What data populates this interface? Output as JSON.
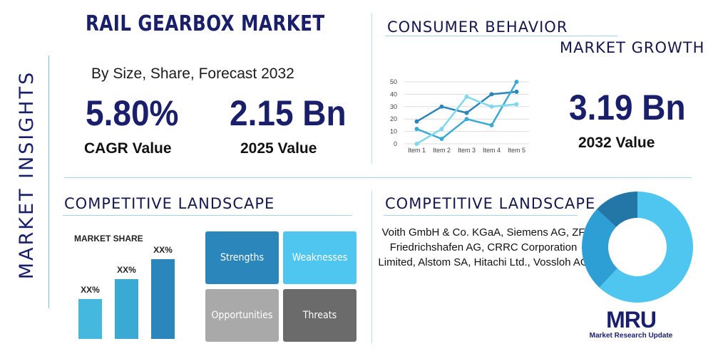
{
  "side_label": "MARKET INSIGHTS",
  "title": "RAIL GEARBOX MARKET",
  "subtitle": "By Size, Share, Forecast 2032",
  "cagr": {
    "value": "5.80%",
    "label": "CAGR Value"
  },
  "value_2025": {
    "value": "2.15 Bn",
    "label": "2025 Value"
  },
  "consumer_title": "CONSUMER BEHAVIOR",
  "growth_title": "MARKET GROWTH",
  "value_2032": {
    "value": "3.19 Bn",
    "label": "2032 Value"
  },
  "competitive_left_title": "COMPETITIVE LANDSCAPE",
  "market_share_label": "MARKET SHARE",
  "competitive_right_title": "COMPETITIVE LANDSCAPE",
  "companies": "Voith GmbH & Co. KGaA, Siemens AG, ZF Friedrichshafen AG, CRRC Corporation Limited, Alstom SA, Hitachi Ltd., Vossloh AG",
  "swot": {
    "strengths": "Strengths",
    "weaknesses": "Weaknesses",
    "opportunities": "Opportunities",
    "threats": "Threats"
  },
  "logo": {
    "text": "MRU",
    "caption": "Market Research Update"
  },
  "colors": {
    "navy": "#1a1f6b",
    "line_blue": "#2b85b8",
    "line_light": "#3fc0e8",
    "line_teal": "#5ed1ec",
    "swot_strengths": "#2a86bb",
    "swot_weaknesses": "#4ec6f0",
    "swot_opportunities": "#a9a9a9",
    "swot_threats": "#6b6b6b"
  },
  "chart_data": [
    {
      "type": "line",
      "x": [
        "Item 1",
        "Item 2",
        "Item 3",
        "Item 4",
        "Item 5"
      ],
      "y_ticks": [
        0,
        10,
        20,
        30,
        40,
        50
      ],
      "ylim": [
        0,
        50
      ],
      "grid": true,
      "series": [
        {
          "values": [
            18,
            30,
            25,
            40,
            42
          ],
          "color": "#2b85b8"
        },
        {
          "values": [
            12,
            4,
            20,
            15,
            50
          ],
          "color": "#3aa9d4"
        },
        {
          "values": [
            0,
            12,
            38,
            30,
            32
          ],
          "color": "#7fd8ee"
        }
      ]
    },
    {
      "type": "bar",
      "categories": [
        "",
        "",
        ""
      ],
      "values": [
        30,
        45,
        60
      ],
      "data_labels": [
        "XX%",
        "XX%",
        "XX%"
      ],
      "colors": [
        "#45b8de",
        "#3aa9d4",
        "#2a86bb"
      ]
    },
    {
      "type": "pie",
      "values": [
        62,
        25,
        13
      ],
      "colors": [
        "#4ec6f0",
        "#2e9fd4",
        "#2277a6"
      ]
    }
  ]
}
